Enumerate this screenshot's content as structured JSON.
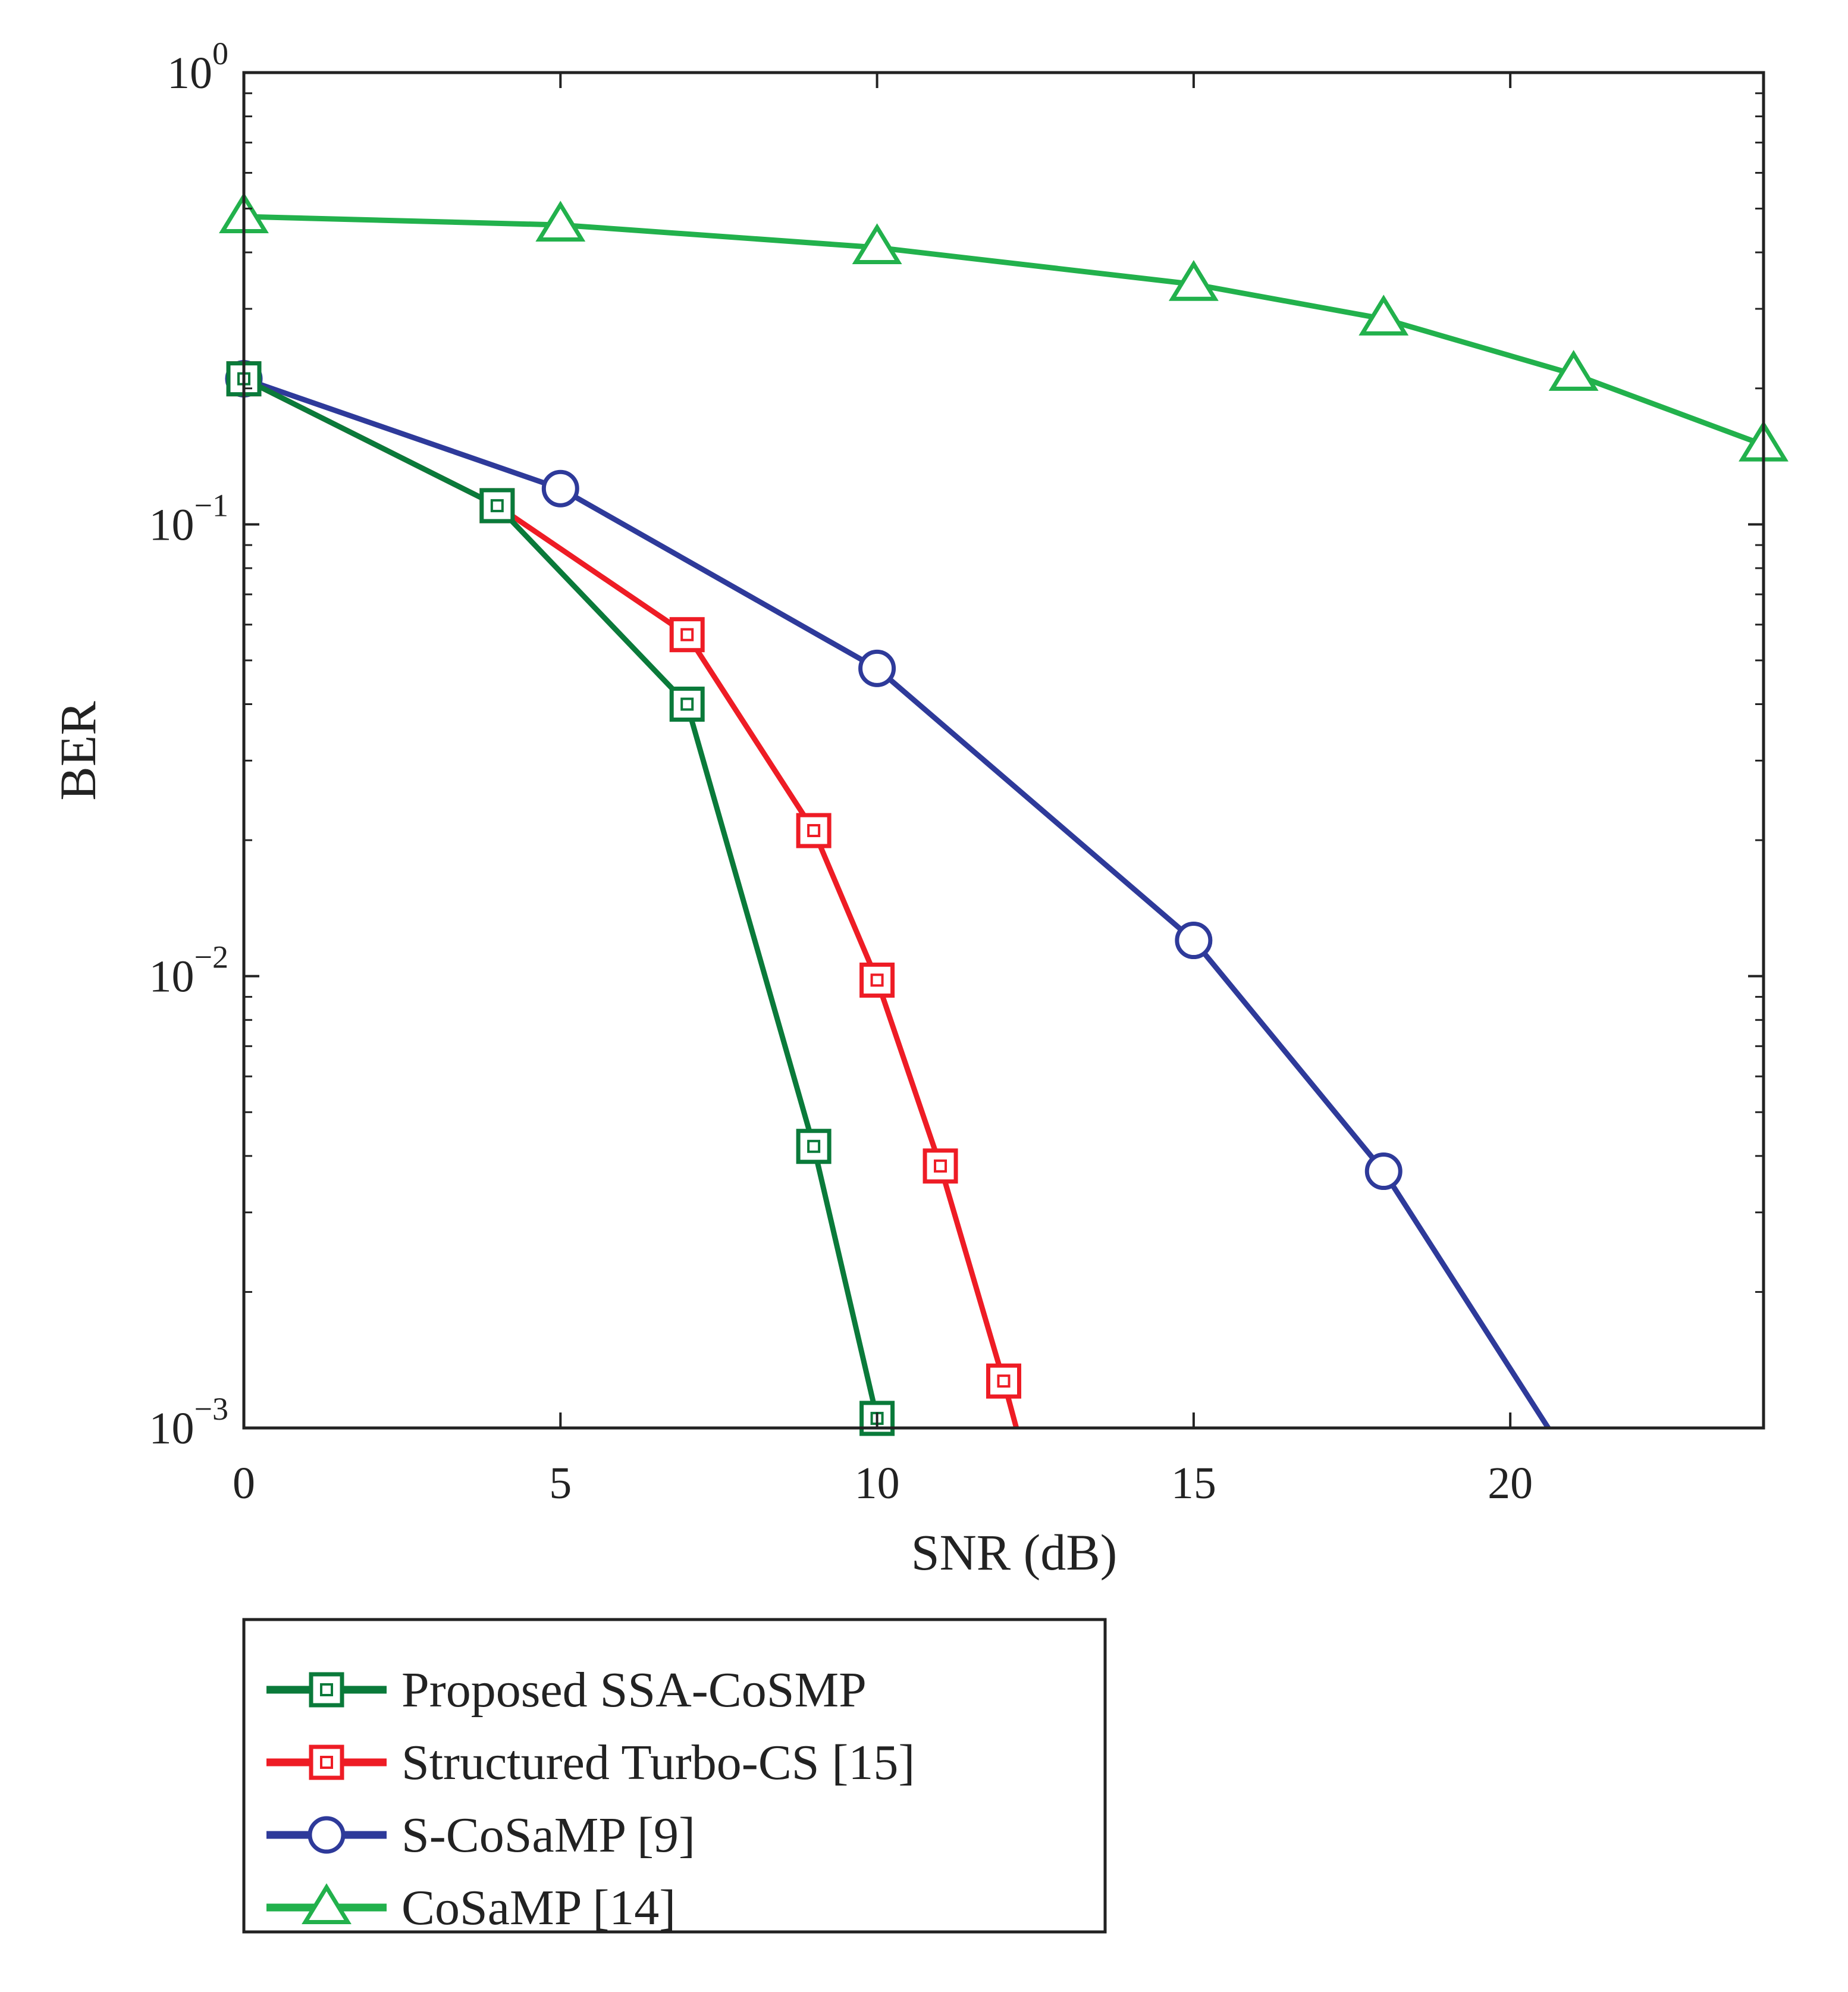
{
  "chart_data": {
    "type": "line",
    "title": "",
    "xlabel": "SNR (dB)",
    "ylabel": "BER",
    "xscale": "linear",
    "yscale": "log",
    "xlim": [
      0,
      24
    ],
    "ylim": [
      0.001,
      1
    ],
    "grid": false,
    "legend_position": "below plot, left",
    "x_ticks": [
      0,
      5,
      10,
      15,
      20
    ],
    "x_tick_labels": [
      "0",
      "5",
      "10",
      "15",
      "20"
    ],
    "y_ticks": [
      1,
      0.1,
      0.01,
      0.001
    ],
    "y_tick_labels": [
      {
        "base": "10",
        "exp": "0"
      },
      {
        "base": "10",
        "exp": "−1"
      },
      {
        "base": "10",
        "exp": "−2"
      },
      {
        "base": "10",
        "exp": "−3"
      }
    ],
    "series": [
      {
        "name": "Proposed SSA-CoSMP",
        "color": "#0a7a3a",
        "marker": "square",
        "x": [
          0,
          4,
          7,
          9,
          10
        ],
        "y": [
          0.21,
          0.11,
          0.04,
          0.0042,
          0.00105
        ],
        "line_end": null
      },
      {
        "name": "Structured Turbo-CS [15]",
        "color": "#ee1c25",
        "marker": "square",
        "x": [
          0,
          4,
          7,
          9,
          10,
          11,
          12
        ],
        "y": [
          0.21,
          0.11,
          0.057,
          0.021,
          0.0098,
          0.0038,
          0.00127
        ],
        "line_end": [
          12.2,
          0.001
        ]
      },
      {
        "name": "S-CoSaMP [9]",
        "color": "#2e3a9a",
        "marker": "circle",
        "x": [
          0,
          5,
          10,
          15,
          18
        ],
        "y": [
          0.21,
          0.12,
          0.048,
          0.012,
          0.0037
        ],
        "line_end": [
          20.6,
          0.001
        ]
      },
      {
        "name": "CoSaMP [14]",
        "color": "#22b14c",
        "marker": "triangle",
        "x": [
          0,
          5,
          10,
          15,
          18,
          21,
          24
        ],
        "y": [
          0.48,
          0.46,
          0.41,
          0.34,
          0.285,
          0.215,
          0.15
        ],
        "line_end": null
      }
    ]
  }
}
